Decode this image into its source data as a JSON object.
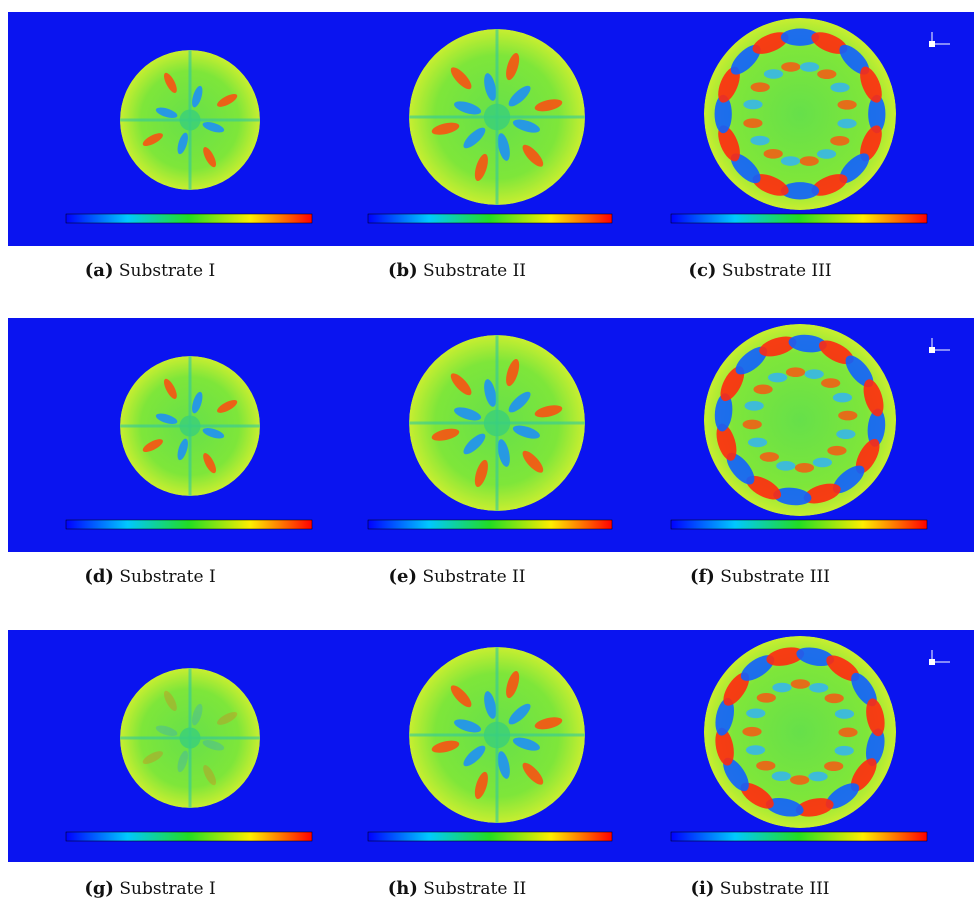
{
  "figure": {
    "panels": [
      {
        "label": "(a)",
        "caption": "Substrate I"
      },
      {
        "label": "(b)",
        "caption": "Substrate II"
      },
      {
        "label": "(c)",
        "caption": "Substrate III"
      },
      {
        "label": "(d)",
        "caption": "Substrate I"
      },
      {
        "label": "(e)",
        "caption": "Substrate II"
      },
      {
        "label": "(f)",
        "caption": "Substrate III"
      },
      {
        "label": "(g)",
        "caption": "Substrate I"
      },
      {
        "label": "(h)",
        "caption": "Substrate II"
      },
      {
        "label": "(i)",
        "caption": "Substrate III"
      }
    ]
  }
}
